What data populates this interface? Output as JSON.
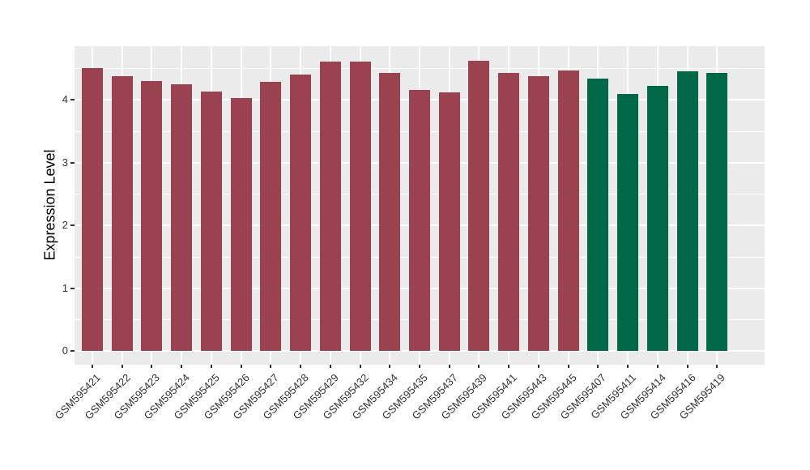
{
  "figure": {
    "background": "#FFFFFF",
    "panel_background": "#EBEBEB",
    "gridline_color": "#FFFFFF",
    "axis_text_color": "#333333",
    "axis_title_color": "#000000"
  },
  "chart_data": {
    "type": "bar",
    "title": "",
    "xlabel": "",
    "ylabel": "Expression Level",
    "categories": [
      "GSM595421",
      "GSM595422",
      "GSM595423",
      "GSM595424",
      "GSM595425",
      "GSM595426",
      "GSM595427",
      "GSM595428",
      "GSM595429",
      "GSM595432",
      "GSM595434",
      "GSM595435",
      "GSM595437",
      "GSM595439",
      "GSM595441",
      "GSM595443",
      "GSM595445",
      "GSM595407",
      "GSM595411",
      "GSM595414",
      "GSM595416",
      "GSM595419"
    ],
    "values": [
      4.5,
      4.37,
      4.3,
      4.24,
      4.13,
      4.03,
      4.28,
      4.4,
      4.61,
      4.61,
      4.42,
      4.16,
      4.12,
      4.62,
      4.42,
      4.37,
      4.46,
      4.34,
      4.09,
      4.22,
      4.45,
      4.43
    ],
    "bar_colors": [
      "#9A4250",
      "#9A4250",
      "#9A4250",
      "#9A4250",
      "#9A4250",
      "#9A4250",
      "#9A4250",
      "#9A4250",
      "#9A4250",
      "#9A4250",
      "#9A4250",
      "#9A4250",
      "#9A4250",
      "#9A4250",
      "#9A4250",
      "#9A4250",
      "#9A4250",
      "#006847",
      "#006847",
      "#006847",
      "#006847",
      "#006847"
    ],
    "group_colors": {
      "red_group": "#9A4250",
      "green_group": "#006847"
    },
    "yticks": [
      0,
      1,
      2,
      3,
      4
    ],
    "ylim": [
      -0.22,
      4.85
    ],
    "x_tick_rotation": 45,
    "grid": "horizontal major+minor, vertical major per category",
    "legend_position": "none"
  }
}
